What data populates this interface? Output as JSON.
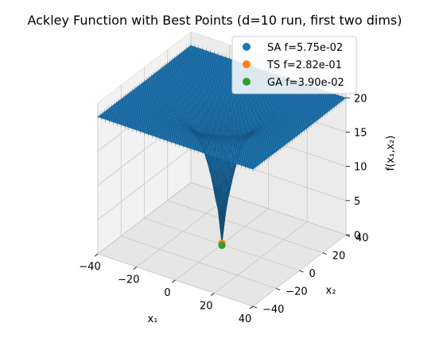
{
  "chart_data": {
    "type": "surface3d",
    "title": "Ackley Function with Best Points (d=10 run, first two dims)",
    "xlabel": "x₁",
    "ylabel": "x₂",
    "zlabel": "f(x₁,x₂)",
    "xlim": [
      -40,
      40
    ],
    "ylim": [
      -40,
      40
    ],
    "zlim": [
      0,
      22
    ],
    "x_ticks": [
      -40,
      -20,
      0,
      20,
      40
    ],
    "y_ticks": [
      -40,
      -20,
      0,
      20,
      40
    ],
    "z_ticks": [
      0,
      5,
      10,
      15,
      20
    ],
    "grid": true,
    "legend_position": "top-right",
    "surface_color": "#1f77b4",
    "series": [
      {
        "name": "SA  f=5.75e-02",
        "color": "#1f77b4",
        "x": 0,
        "y": 0,
        "z": 0.0575
      },
      {
        "name": "TS  f=2.82e-01",
        "color": "#ff7f0e",
        "x": 0,
        "y": 0,
        "z": 0.282
      },
      {
        "name": "GA  f=3.90e-02",
        "color": "#2ca02c",
        "x": 0,
        "y": 0,
        "z": 0.039
      }
    ]
  }
}
